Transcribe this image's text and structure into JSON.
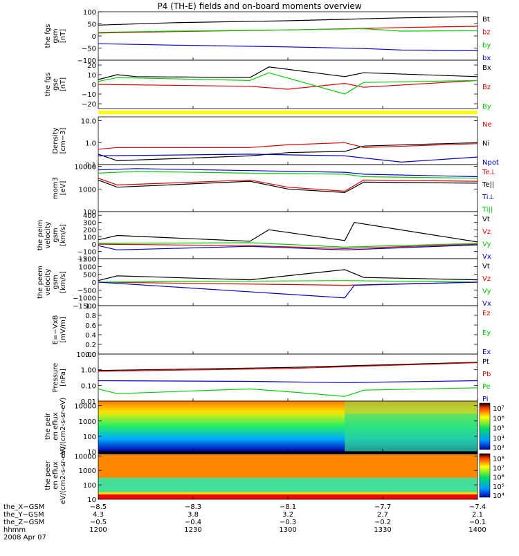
{
  "title": "P4 (TH-E) fields and on-board moments overview",
  "colors": {
    "black": "#000000",
    "red": "#e00000",
    "green": "#00cc00",
    "blue": "#0000cc",
    "yellow": "#ffff00"
  },
  "chart_data": [
    {
      "type": "line",
      "id": "p1",
      "ylabel": "the fgs gsm [nT]",
      "ylim": [
        -100,
        100
      ],
      "yticks": [
        "100",
        "50",
        "0",
        "−50",
        "−100"
      ],
      "ytick_vals": [
        100,
        50,
        0,
        -50,
        -100
      ],
      "series": [
        {
          "name": "Bt",
          "color": "black",
          "x": [
            1200,
            1240,
            1300,
            1360,
            1400
          ],
          "values": [
            45,
            55,
            63,
            75,
            80
          ]
        },
        {
          "name": "bz",
          "color": "red",
          "x": [
            1200,
            1240,
            1300,
            1360,
            1400
          ],
          "values": [
            12,
            18,
            25,
            35,
            40
          ]
        },
        {
          "name": "by",
          "color": "green",
          "x": [
            1200,
            1240,
            1300,
            1340,
            1360,
            1400
          ],
          "values": [
            15,
            20,
            25,
            30,
            20,
            22
          ]
        },
        {
          "name": "bx",
          "color": "blue",
          "x": [
            1200,
            1240,
            1300,
            1340,
            1360,
            1400
          ],
          "values": [
            -32,
            -38,
            -45,
            -52,
            -58,
            -60
          ]
        }
      ]
    },
    {
      "type": "line",
      "id": "p2",
      "ylabel": "the fgs gse [nT]",
      "ylim": [
        -25,
        25
      ],
      "yticks": [
        "20",
        "10",
        "0",
        "−10",
        "−20"
      ],
      "ytick_vals": [
        20,
        10,
        0,
        -10,
        -20
      ],
      "series": [
        {
          "name": "Bx",
          "color": "black",
          "x": [
            1200,
            1210,
            1220,
            1280,
            1290,
            1330,
            1340,
            1400
          ],
          "values": [
            5,
            10,
            8,
            7,
            18,
            8,
            12,
            8
          ]
        },
        {
          "name": "Bz",
          "color": "red",
          "x": [
            1200,
            1280,
            1300,
            1330,
            1340,
            1400
          ],
          "values": [
            0,
            -2,
            -5,
            1,
            -3,
            4
          ]
        },
        {
          "name": "By",
          "color": "green",
          "x": [
            1200,
            1210,
            1280,
            1290,
            1330,
            1340,
            1400
          ],
          "values": [
            3,
            7,
            4,
            12,
            -10,
            2,
            4
          ]
        }
      ]
    },
    {
      "type": "line",
      "id": "p3",
      "ylabel": "Density [cm−3]",
      "scale": "log",
      "ylim": [
        0.1,
        15
      ],
      "yticks": [
        "10.0",
        "1.0",
        "0.1"
      ],
      "ytick_vals": [
        10,
        1,
        0.1
      ],
      "series": [
        {
          "name": "Ne",
          "color": "red",
          "x": [
            1200,
            1210,
            1280,
            1300,
            1330,
            1340,
            1400
          ],
          "values": [
            0.5,
            0.6,
            0.6,
            0.8,
            1.0,
            0.6,
            0.9
          ]
        },
        {
          "name": "Ni",
          "color": "black",
          "x": [
            1200,
            1210,
            1280,
            1300,
            1330,
            1340,
            1400
          ],
          "values": [
            0.3,
            0.15,
            0.25,
            0.35,
            0.4,
            0.7,
            1.0
          ]
        },
        {
          "name": "Npot",
          "color": "blue",
          "x": [
            1200,
            1280,
            1330,
            1360,
            1400
          ],
          "values": [
            0.25,
            0.3,
            0.25,
            0.13,
            0.22
          ]
        }
      ]
    },
    {
      "type": "line",
      "id": "p4",
      "ylabel": "mom3 [eV]",
      "scale": "log",
      "ylim": [
        100,
        12000
      ],
      "yticks": [
        "10000",
        "1000",
        "100"
      ],
      "ytick_vals": [
        10000,
        1000,
        100
      ],
      "series": [
        {
          "name": "Te⊥",
          "color": "red",
          "x": [
            1200,
            1210,
            1280,
            1300,
            1330,
            1340,
            1400
          ],
          "values": [
            3000,
            1500,
            2500,
            1200,
            800,
            2500,
            2200
          ]
        },
        {
          "name": "Te||",
          "color": "black",
          "x": [
            1200,
            1210,
            1280,
            1300,
            1330,
            1340,
            1400
          ],
          "values": [
            2500,
            1200,
            2200,
            1000,
            700,
            2000,
            1800
          ]
        },
        {
          "name": "Ti⊥",
          "color": "blue",
          "x": [
            1200,
            1220,
            1280,
            1330,
            1340,
            1400
          ],
          "values": [
            7000,
            8000,
            6500,
            5500,
            4500,
            3500
          ]
        },
        {
          "name": "Ti||",
          "color": "green",
          "x": [
            1200,
            1220,
            1280,
            1330,
            1340,
            1400
          ],
          "values": [
            5000,
            6000,
            5000,
            4500,
            3500,
            3000
          ]
        }
      ]
    },
    {
      "type": "line",
      "id": "p5",
      "ylabel": "the peim velocity gsm [km/s]",
      "ylim": [
        -200,
        450
      ],
      "yticks": [
        "400",
        "300",
        "200",
        "100",
        "0",
        "−100",
        "−200"
      ],
      "ytick_vals": [
        400,
        300,
        200,
        100,
        0,
        -100,
        -200
      ],
      "series": [
        {
          "name": "Vt",
          "color": "black",
          "x": [
            1200,
            1210,
            1280,
            1290,
            1330,
            1335,
            1400
          ],
          "values": [
            60,
            120,
            40,
            200,
            50,
            300,
            30
          ]
        },
        {
          "name": "Vz",
          "color": "red",
          "x": [
            1200,
            1280,
            1330,
            1400
          ],
          "values": [
            0,
            -20,
            -60,
            0
          ]
        },
        {
          "name": "Vy",
          "color": "green",
          "x": [
            1200,
            1280,
            1330,
            1400
          ],
          "values": [
            10,
            20,
            -40,
            10
          ]
        },
        {
          "name": "Vx",
          "color": "blue",
          "x": [
            1200,
            1210,
            1280,
            1330,
            1400
          ],
          "values": [
            -20,
            -80,
            -30,
            -80,
            -10
          ]
        }
      ]
    },
    {
      "type": "line",
      "id": "p6",
      "ylabel": "the peem velocity gsm [km/s]",
      "ylim": [
        -1500,
        1500
      ],
      "yticks": [
        "1500",
        "1000",
        "500",
        "0",
        "−500",
        "−1000",
        "−1500"
      ],
      "ytick_vals": [
        1500,
        1000,
        500,
        0,
        -500,
        -1000,
        -1500
      ],
      "series": [
        {
          "name": "Vt",
          "color": "black",
          "x": [
            1200,
            1210,
            1280,
            1330,
            1340,
            1400
          ],
          "values": [
            100,
            400,
            150,
            800,
            300,
            150
          ]
        },
        {
          "name": "Vz",
          "color": "red",
          "x": [
            1200,
            1330,
            1400
          ],
          "values": [
            0,
            -200,
            0
          ]
        },
        {
          "name": "Vy",
          "color": "green",
          "x": [
            1200,
            1330,
            1400
          ],
          "values": [
            0,
            100,
            0
          ]
        },
        {
          "name": "Vx",
          "color": "blue",
          "x": [
            1200,
            1330,
            1335,
            1400
          ],
          "values": [
            0,
            -1000,
            -200,
            0
          ]
        }
      ]
    },
    {
      "type": "line",
      "id": "p7",
      "ylabel": "E=−VxB [mV/m]",
      "ylim": [
        0,
        1
      ],
      "yticks": [
        "1.0",
        "0.8",
        "0.6",
        "0.4",
        "0.2",
        "0.0"
      ],
      "ytick_vals": [
        1,
        0.8,
        0.6,
        0.4,
        0.2,
        0
      ],
      "series": [
        {
          "name": "Ez",
          "color": "red",
          "x": [],
          "values": []
        },
        {
          "name": "Ey",
          "color": "green",
          "x": [],
          "values": []
        },
        {
          "name": "Ex",
          "color": "blue",
          "x": [],
          "values": []
        }
      ]
    },
    {
      "type": "line",
      "id": "p8",
      "ylabel": "Pressure [nPa]",
      "scale": "log",
      "ylim": [
        0.01,
        10
      ],
      "yticks": [
        "10.00",
        "1.00",
        "0.10",
        "0.01"
      ],
      "ytick_vals": [
        10,
        1,
        0.1,
        0.01
      ],
      "series": [
        {
          "name": "Pt",
          "color": "black",
          "x": [
            1200,
            1300,
            1400
          ],
          "values": [
            0.9,
            1.4,
            3.0
          ]
        },
        {
          "name": "Pb",
          "color": "red",
          "x": [
            1200,
            1300,
            1400
          ],
          "values": [
            0.8,
            1.2,
            2.8
          ]
        },
        {
          "name": "Pe",
          "color": "green",
          "x": [
            1200,
            1210,
            1280,
            1300,
            1330,
            1340,
            1400
          ],
          "values": [
            0.06,
            0.03,
            0.06,
            0.04,
            0.02,
            0.05,
            0.07
          ]
        },
        {
          "name": "Pi",
          "color": "blue",
          "x": [
            1200,
            1280,
            1330,
            1400
          ],
          "values": [
            0.2,
            0.18,
            0.15,
            0.2
          ]
        }
      ]
    },
    {
      "type": "heatmap",
      "id": "p9",
      "ylabel": "the peir en eflux eV/(cm2-s-sr-eV)",
      "scale": "log",
      "ylim": [
        10,
        20000
      ],
      "yticks": [
        "10000",
        "1000",
        "100",
        "10"
      ],
      "ytick_vals": [
        10000,
        1000,
        100,
        10
      ],
      "colorbar": {
        "labels": [
          "10⁷",
          "10⁶",
          "10⁵",
          "10⁴",
          "10³"
        ]
      }
    },
    {
      "type": "heatmap",
      "id": "p10",
      "ylabel": "the peer en eflux eV/(cm2-s-sr-eV)",
      "scale": "log",
      "ylim": [
        10,
        20000
      ],
      "yticks": [
        "10000",
        "1000",
        "100",
        "10"
      ],
      "ytick_vals": [
        10000,
        1000,
        100,
        10
      ],
      "colorbar": {
        "labels": [
          "10⁸",
          "10⁷",
          "10⁶",
          "10⁵",
          "10⁴"
        ]
      }
    }
  ],
  "xaxis": {
    "xlim": [
      1200,
      1400
    ],
    "rows": [
      {
        "label": "the_X−GSM",
        "values": [
          "−8.5",
          "−8.3",
          "−8.1",
          "−7.7",
          "−7.4"
        ]
      },
      {
        "label": "the_Y−GSM",
        "values": [
          "4.3",
          "3.8",
          "3.2",
          "2.7",
          "2.1"
        ]
      },
      {
        "label": "the_Z−GSM",
        "values": [
          "−0.5",
          "−0.4",
          "−0.3",
          "−0.2",
          "−0.1"
        ]
      },
      {
        "label": "hhmm",
        "values": [
          "1200",
          "1230",
          "1300",
          "1330",
          "1400"
        ]
      }
    ],
    "tick_x": [
      1200,
      1250,
      1300,
      1350,
      1400
    ],
    "date": "2008 Apr 07"
  }
}
